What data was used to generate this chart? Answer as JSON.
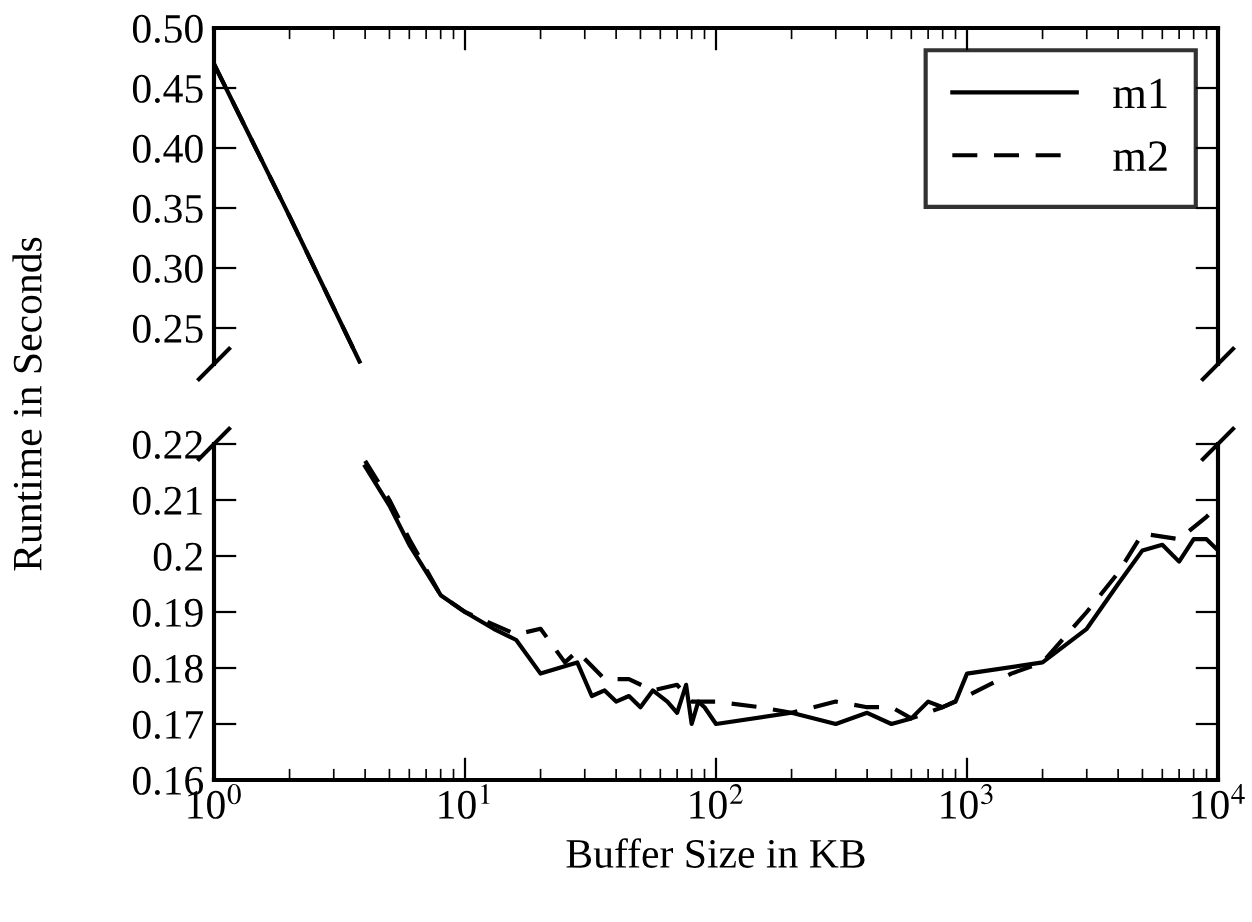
{
  "chart_data": [
    {
      "type": "line",
      "xlim": [
        1,
        10000
      ],
      "ylim": [
        0.22,
        0.5
      ],
      "yticks": [
        {
          "value": 0.25,
          "label": "0.25"
        },
        {
          "value": 0.3,
          "label": "0.30"
        },
        {
          "value": 0.35,
          "label": "0.35"
        },
        {
          "value": 0.4,
          "label": "0.40"
        },
        {
          "value": 0.45,
          "label": "0.45"
        },
        {
          "value": 0.5,
          "label": "0.50"
        }
      ],
      "log": "x",
      "tick_labels": "y",
      "grid": false,
      "legend": "top right",
      "marker": "none",
      "series": [
        {
          "name": "m1",
          "color": "#000000",
          "line_style": "solid",
          "x": [
            1,
            2,
            3.8
          ],
          "values": [
            0.47,
            0.343,
            0.222
          ]
        },
        {
          "name": "m2",
          "color": "#000000",
          "line_style": "dashed",
          "x": [
            1,
            2,
            3.8
          ],
          "values": [
            0.47,
            0.343,
            0.222
          ]
        }
      ]
    },
    {
      "type": "line",
      "xlim": [
        1,
        10000
      ],
      "xticks": [
        {
          "value": 1,
          "label": "10$^{0}$"
        },
        {
          "value": 10,
          "label": "10$^{1}$"
        },
        {
          "value": 100,
          "label": "10$^{2}$"
        },
        {
          "value": 1000,
          "label": "10$^{3}$"
        },
        {
          "value": 10000,
          "label": "10$^{4}$"
        }
      ],
      "ylim": [
        0.16,
        0.22
      ],
      "yticks": [
        0.16,
        0.17,
        0.18,
        0.19,
        0.2,
        0.21,
        0.22
      ],
      "log": "x",
      "grid": false,
      "marker": "none",
      "xlabel": "Buffer Size in KB",
      "ylabel": "Runtime in Seconds",
      "series": [
        {
          "color": "#000000",
          "line_style": "solid",
          "x": [
            4,
            5,
            6,
            8,
            10,
            13,
            16,
            20,
            28,
            32,
            36,
            40,
            45,
            50,
            56,
            64,
            70,
            76,
            80,
            85,
            90,
            100,
            200,
            300,
            400,
            500,
            600,
            700,
            800,
            900,
            1000,
            2000,
            3000,
            4000,
            5000,
            6000,
            7000,
            8000,
            9000,
            10000
          ],
          "values": [
            0.216,
            0.209,
            0.202,
            0.193,
            0.19,
            0.187,
            0.185,
            0.179,
            0.181,
            0.175,
            0.176,
            0.174,
            0.175,
            0.173,
            0.176,
            0.174,
            0.172,
            0.177,
            0.17,
            0.174,
            0.173,
            0.17,
            0.172,
            0.17,
            0.172,
            0.17,
            0.171,
            0.174,
            0.173,
            0.174,
            0.179,
            0.181,
            0.187,
            0.195,
            0.201,
            0.202,
            0.199,
            0.203,
            0.203,
            0.201
          ]
        },
        {
          "color": "#000000",
          "line_style": "dashed",
          "x": [
            4,
            5,
            6,
            8,
            10,
            16,
            20,
            25,
            28,
            36,
            45,
            56,
            70,
            80,
            100,
            150,
            200,
            300,
            400,
            500,
            600,
            800,
            1000,
            1500,
            2000,
            3000,
            4000,
            5000,
            7000,
            9000,
            10000
          ],
          "values": [
            0.217,
            0.21,
            0.203,
            0.193,
            0.19,
            0.186,
            0.187,
            0.181,
            0.183,
            0.178,
            0.178,
            0.176,
            0.177,
            0.174,
            0.174,
            0.173,
            0.172,
            0.174,
            0.173,
            0.173,
            0.171,
            0.173,
            0.175,
            0.179,
            0.181,
            0.19,
            0.197,
            0.204,
            0.203,
            0.207,
            0.209
          ]
        }
      ]
    }
  ]
}
